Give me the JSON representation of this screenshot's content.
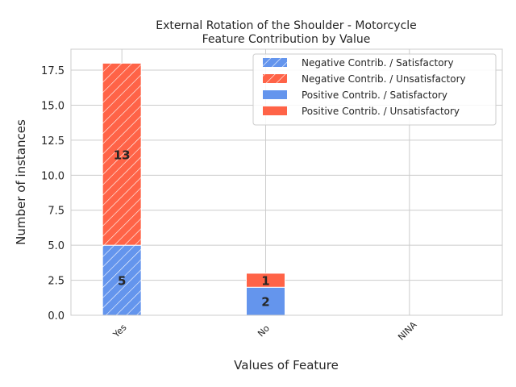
{
  "chart_data": {
    "type": "bar",
    "stacked": true,
    "title": "External Rotation of the Shoulder - Motorcycle",
    "subtitle": "Feature Contribution by Value",
    "xlabel": "Values of Feature",
    "ylabel": "Number of instances",
    "categories": [
      "Yes",
      "No",
      "NINA"
    ],
    "ylim": [
      0,
      19
    ],
    "yticks": [
      "0.0",
      "2.5",
      "5.0",
      "7.5",
      "10.0",
      "12.5",
      "15.0",
      "17.5"
    ],
    "grid": true,
    "legend_position": "top-right",
    "series": [
      {
        "name": "Negative Contrib. / Satisfactory",
        "values": [
          5,
          0,
          0
        ],
        "color": "#6495ed",
        "hatch": true
      },
      {
        "name": "Negative Contrib. / Unsatisfactory",
        "values": [
          13,
          0,
          0
        ],
        "color": "#ff6347",
        "hatch": true
      },
      {
        "name": "Positive Contrib. / Satisfactory",
        "values": [
          0,
          2,
          0
        ],
        "color": "#6495ed",
        "hatch": false
      },
      {
        "name": "Positive Contrib. / Unsatisfactory",
        "values": [
          0,
          1,
          0
        ],
        "color": "#ff6347",
        "hatch": false
      }
    ],
    "data_labels": [
      {
        "category": "Yes",
        "value": 5,
        "text": "5"
      },
      {
        "category": "Yes",
        "value": 13,
        "text": "13"
      },
      {
        "category": "No",
        "value": 2,
        "text": "2"
      },
      {
        "category": "No",
        "value": 1,
        "text": "1"
      }
    ]
  }
}
